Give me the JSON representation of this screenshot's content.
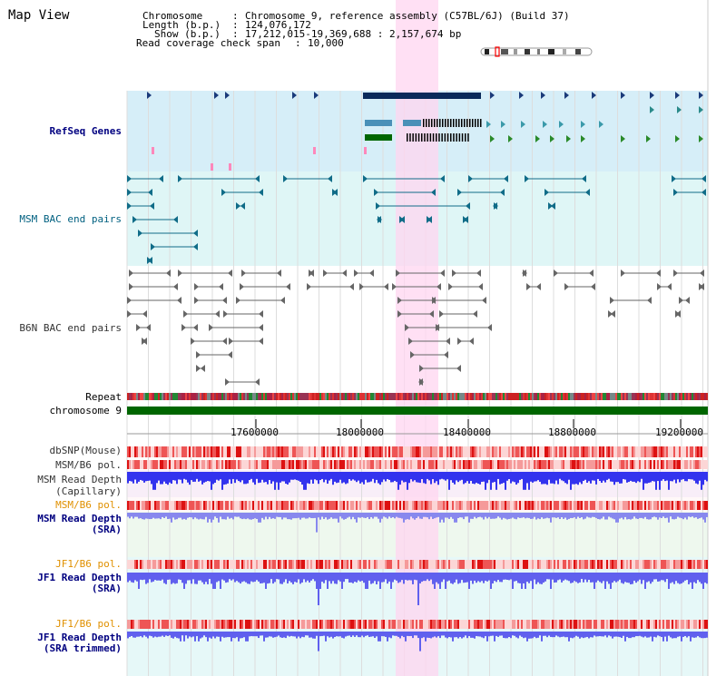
{
  "page": {
    "title": "Map View"
  },
  "header": {
    "rows": [
      {
        "key": "Chromosome",
        "value": "Chromosome 9, reference assembly (C57BL/6J) (Build 37)"
      },
      {
        "key": "Length (b.p.)",
        "value": "124,076,172"
      },
      {
        "key": "Show (b.p.)",
        "value": "17,212,015-19,369,688 : 2,157,674 bp"
      },
      {
        "key": "Read coverage check span",
        "value": "10,000"
      }
    ]
  },
  "tracks": {
    "refseq": "RefSeq Genes",
    "msm_bac": "MSM BAC end pairs",
    "b6n_bac": "B6N BAC end pairs",
    "repeat": "Repeat",
    "chromosome": "chromosome 9",
    "dbsnp": "dbSNP(Mouse)",
    "msm_b6_pol": "MSM/B6 pol.",
    "msm_read_depth_cap": "MSM Read Depth",
    "msm_read_depth_cap_sub": "(Capillary)",
    "msm_b6_pol2": "MSM/B6 pol.",
    "msm_read_depth_sra": "MSM Read Depth",
    "msm_read_depth_sra_sub": "(SRA)",
    "jf1_b6_pol": "JF1/B6 pol.",
    "jf1_read_depth": "JF1 Read Depth",
    "jf1_read_depth_sub": "(SRA)",
    "jf1_b6_pol2": "JF1/B6 pol.",
    "jf1_read_depth_trim": "JF1 Read Depth",
    "jf1_read_depth_trim_sub": "(SRA trimmed)"
  },
  "axis": {
    "ticks": [
      "17600000",
      "18000000",
      "18400000",
      "18800000",
      "19200000"
    ]
  },
  "colors": {
    "refseq_bg": "#d6eef8",
    "msm_bg": "#dff6f6",
    "highlight": "#ffd6f0",
    "chrom_bar": "#006600",
    "gene_dark": "#0a2a5a",
    "gene_green": "#006600",
    "depth_blue": "#3333ee",
    "depth_light": "#8888ee"
  }
}
